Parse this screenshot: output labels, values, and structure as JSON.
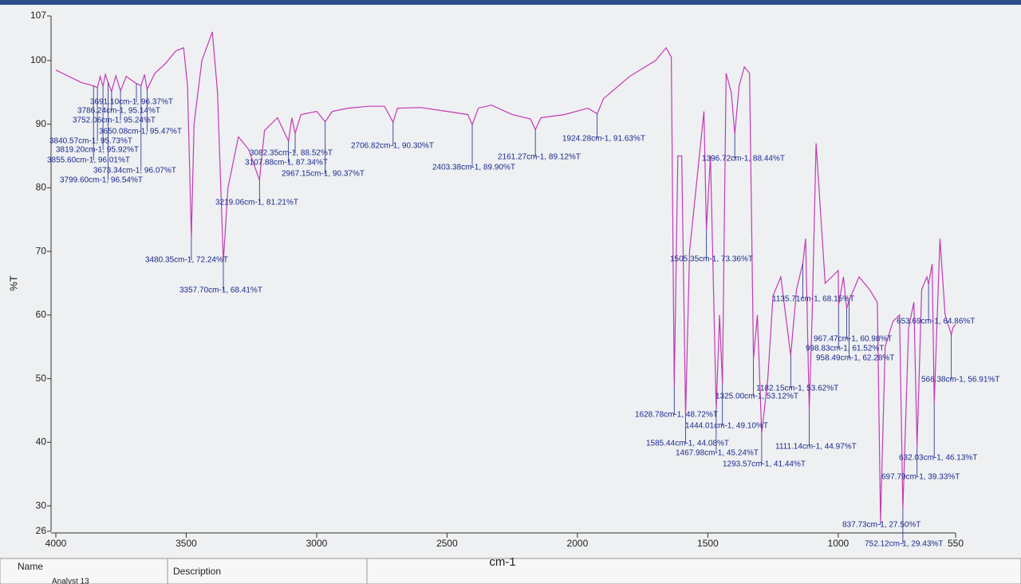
{
  "chart_data": {
    "type": "line",
    "x_label": "cm-1",
    "y_label": "%T",
    "xlim": [
      4000,
      550
    ],
    "ylim": [
      26,
      107
    ],
    "xticks": [
      4000,
      3500,
      3000,
      2500,
      2000,
      1500,
      1000,
      550
    ],
    "yticks": [
      26,
      30,
      40,
      50,
      60,
      70,
      80,
      90,
      100,
      107
    ],
    "table_headers": [
      "Name",
      "Description"
    ],
    "series": [
      {
        "name": "Analyst 13",
        "color": "#c23bb4",
        "x": [
          4000,
          3950,
          3900,
          3855.6,
          3840.57,
          3830,
          3819.2,
          3810,
          3799.6,
          3786.24,
          3770,
          3752.06,
          3730,
          3691.1,
          3673.34,
          3660,
          3650.08,
          3620,
          3580,
          3540,
          3510,
          3495,
          3480.35,
          3470,
          3440,
          3400,
          3380,
          3357.7,
          3340,
          3300,
          3260,
          3219.06,
          3200,
          3150,
          3107.88,
          3095,
          3082.35,
          3060,
          3000,
          2967.15,
          2940,
          2880,
          2800,
          2740,
          2706.82,
          2690,
          2600,
          2500,
          2420,
          2403.38,
          2380,
          2330,
          2250,
          2180,
          2161.27,
          2140,
          2050,
          1960,
          1924.28,
          1900,
          1800,
          1700,
          1660,
          1640,
          1628.78,
          1615,
          1600,
          1585.44,
          1570,
          1540,
          1515,
          1505.35,
          1490,
          1467.98,
          1455,
          1444.01,
          1430,
          1410,
          1396.72,
          1380,
          1360,
          1340,
          1325.0,
          1310,
          1293.57,
          1270,
          1250,
          1220,
          1182.15,
          1160,
          1135.71,
          1125,
          1111.14,
          1100,
          1085,
          1050,
          1000,
          998.83,
          980,
          967.47,
          958.49,
          920,
          880,
          850,
          837.73,
          820,
          790,
          765,
          752.12,
          730,
          710,
          697.79,
          680,
          660,
          653.69,
          640,
          632.03,
          610,
          590,
          566.38,
          560,
          550
        ],
        "values": [
          98.5,
          97.5,
          96.5,
          96.01,
          95.73,
          97.5,
          95.92,
          97.8,
          96.54,
          95.14,
          97.6,
          95.24,
          97.5,
          96.37,
          96.07,
          97.8,
          95.47,
          98,
          99.5,
          101.5,
          102,
          96,
          72.24,
          90,
          100,
          104.5,
          95,
          68.41,
          80,
          88,
          86,
          81.21,
          89,
          91,
          87.34,
          91,
          88.52,
          91.5,
          92,
          90.37,
          92,
          92.5,
          92.8,
          92.8,
          90.3,
          92.5,
          92.6,
          92,
          91.5,
          89.9,
          92.5,
          93,
          91.5,
          90.8,
          89.12,
          91,
          91.5,
          92.5,
          91.63,
          94,
          97.5,
          100,
          102,
          100.5,
          48.72,
          85,
          85,
          44.08,
          70,
          82,
          92,
          73.36,
          85,
          45.24,
          60,
          49.1,
          98,
          95,
          88.44,
          96,
          99,
          98,
          53.12,
          60,
          41.44,
          50,
          63,
          66,
          53.62,
          64,
          68.15,
          72,
          44.97,
          60,
          87,
          65,
          67,
          61.52,
          66,
          60.98,
          62.28,
          66,
          64,
          62,
          27.5,
          55,
          59,
          60,
          29.43,
          58,
          62,
          39.33,
          64,
          66,
          64.86,
          68,
          46.13,
          72,
          60,
          56.91,
          58,
          58.5
        ]
      }
    ],
    "peaks": {
      "x": [
        3691.1,
        3786.24,
        3752.06,
        3650.08,
        3840.57,
        3819.2,
        3855.6,
        3673.34,
        3799.6,
        3480.35,
        3357.7,
        3219.06,
        3082.35,
        3107.88,
        2967.15,
        2706.82,
        2403.38,
        2161.27,
        1924.28,
        1628.78,
        1585.44,
        1467.98,
        1444.01,
        1505.35,
        1396.72,
        1325.0,
        1293.57,
        1182.15,
        1135.71,
        1111.14,
        967.47,
        998.83,
        958.49,
        837.73,
        752.12,
        697.79,
        632.03,
        653.69,
        566.38
      ],
      "values": [
        96.37,
        95.14,
        95.24,
        95.47,
        95.73,
        95.92,
        96.01,
        96.07,
        96.54,
        72.24,
        68.41,
        81.21,
        88.52,
        87.34,
        90.37,
        90.3,
        89.9,
        89.12,
        91.63,
        48.72,
        44.08,
        45.24,
        49.1,
        73.36,
        88.44,
        53.12,
        41.44,
        53.62,
        68.15,
        44.97,
        60.98,
        61.52,
        62.28,
        27.5,
        29.43,
        39.33,
        46.13,
        64.86,
        56.91
      ],
      "value_labels": [
        "3691.10cm-1, 96.37%T",
        "3786.24cm-1, 95.14%T",
        "3752.06cm-1, 95.24%T",
        "3650.08cm-1, 95.47%T",
        "3840.57cm-1, 95.73%T",
        "3819.20cm-1, 95.92%T",
        "3855.60cm-1, 96.01%T",
        "3673.34cm-1, 96.07%T",
        "3799.60cm-1, 96.54%T",
        "3480.35cm-1, 72.24%T",
        "3357.70cm-1, 68.41%T",
        "3219.06cm-1, 81.21%T",
        "3082.35cm-1, 88.52%T",
        "3107.88cm-1, 87.34%T",
        "2967.15cm-1, 90.37%T",
        "2706.82cm-1, 90.30%T",
        "2403.38cm-1, 89.90%T",
        "2161.27cm-1, 89.12%T",
        "1924.28cm-1, 91.63%T",
        "1628.78cm-1, 48.72%T",
        "1585.44cm-1, 44.08%T",
        "1467.98cm-1, 45.24%T",
        "1444.01cm-1, 49.10%T",
        "1505.35cm-1, 73.36%T",
        "1396.72cm-1, 88.44%T",
        "1325.00cm-1, 53.12%T",
        "1293.57cm-1, 41.44%T",
        "1182.15cm-1, 53.62%T",
        "1135.71cm-1, 68.15%T",
        "1111.14cm-1, 44.97%T",
        "967.47cm-1, 60.98%T",
        "998.83cm-1, 61.52%T",
        "958.49cm-1, 62.28%T",
        "837.73cm-1, 27.50%T",
        "752.12cm-1, 29.43%T",
        "697.79cm-1, 39.33%T",
        "632.03cm-1, 46.13%T",
        "653.69cm-1, 64.86%T",
        "566.38cm-1, 56.91%T"
      ]
    }
  }
}
